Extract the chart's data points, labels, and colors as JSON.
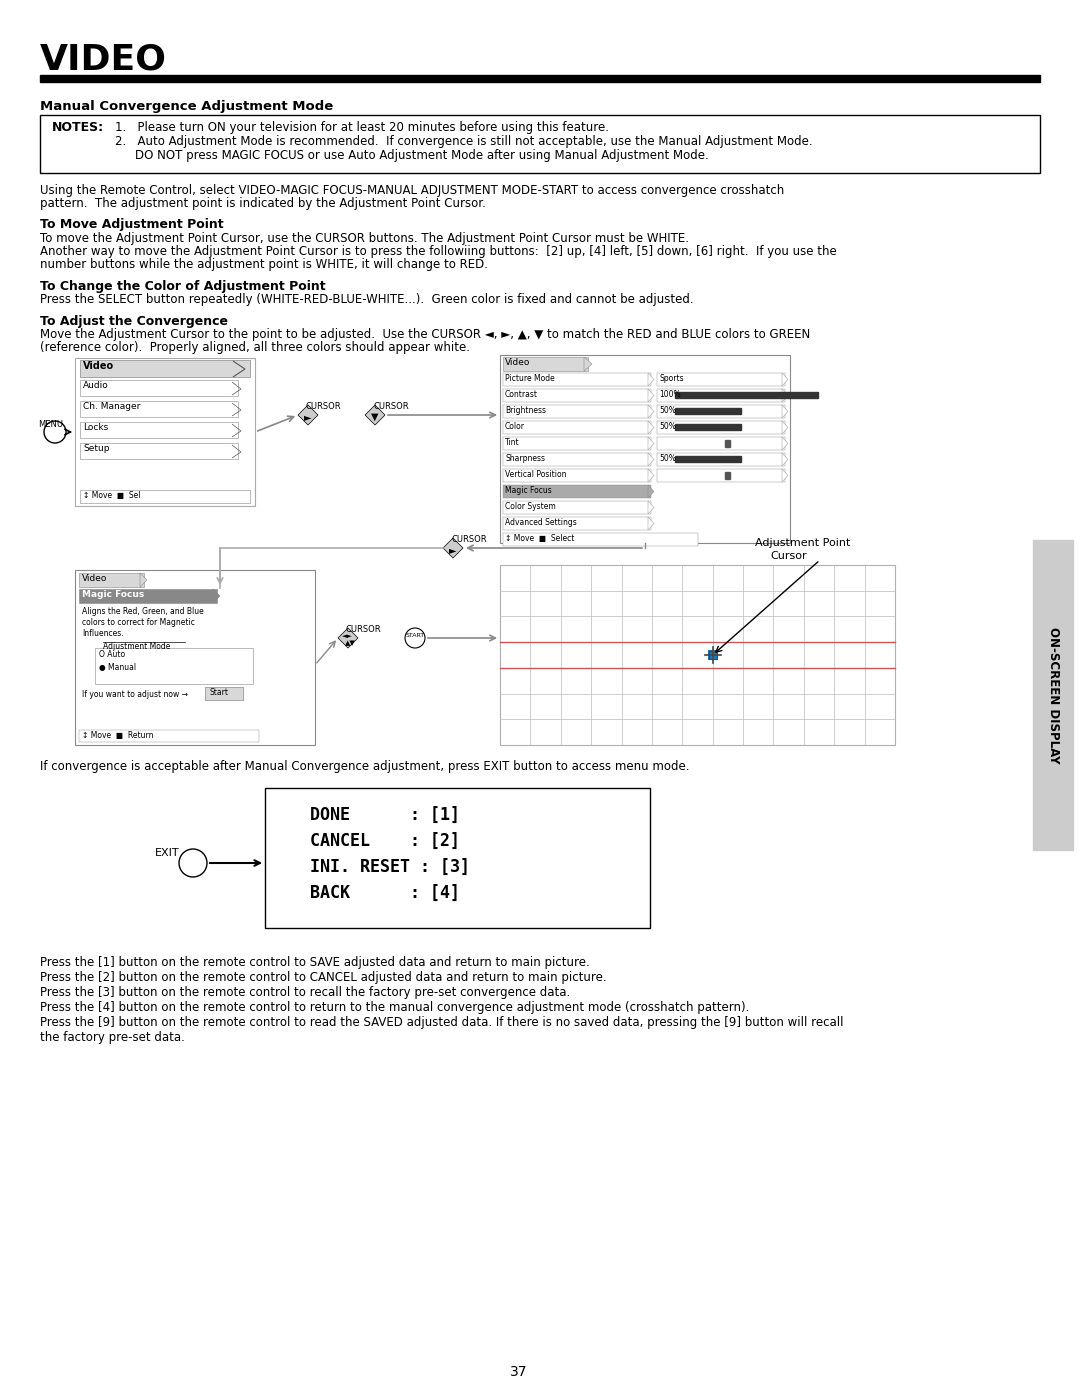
{
  "title": "VIDEO",
  "section_title": "Manual Convergence Adjustment Mode",
  "notes_label": "NOTES:",
  "note1": "Please turn ON your television for at least 20 minutes before using this feature.",
  "note2_a": "Auto Adjustment Mode is recommended.  If convergence is still not acceptable, use the Manual Adjustment Mode.",
  "note2_b": "DO NOT press MAGIC FOCUS or use Auto Adjustment Mode after using Manual Adjustment Mode.",
  "para1_a": "Using the Remote Control, select VIDEO-MAGIC FOCUS-MANUAL ADJUSTMENT MODE-START to access convergence crosshatch",
  "para1_b": "pattern.  The adjustment point is indicated by the Adjustment Point Cursor.",
  "sub1": "To Move Adjustment Point",
  "sub1_text1": "To move the Adjustment Point Cursor, use the CURSOR buttons. The Adjustment Point Cursor must be WHITE.",
  "sub1_text2a": "Another way to move the Adjustment Point Cursor is to press the followiing buttons:  [2] up, [4] left, [5] down, [6] right.  If you use the",
  "sub1_text2b": "number buttons while the adjustment point is WHITE, it will change to RED.",
  "sub2": "To Change the Color of Adjustment Point",
  "sub2_text": "Press the SELECT button repeatedly (WHITE-RED-BLUE-WHITE...).  Green color is fixed and cannot be adjusted.",
  "sub3": "To Adjust the Convergence",
  "sub3_text1": "Move the Adjustment Cursor to the point to be adjusted.  Use the CURSOR ◄, ►, ▲, ▼ to match the RED and BLUE colors to GREEN",
  "sub3_text2": "(reference color).  Properly aligned, all three colors should appear white.",
  "after_diag": "If convergence is acceptable after Manual Convergence adjustment, press EXIT button to access menu mode.",
  "footer_notes": [
    "Press the [1] button on the remote control to SAVE adjusted data and return to main picture.",
    "Press the [2] button on the remote control to CANCEL adjusted data and return to main picture.",
    "Press the [3] button on the remote control to recall the factory pre-set convergence data.",
    "Press the [4] button on the remote control to return to the manual convergence adjustment mode (crosshatch pattern).",
    "Press the [9] button on the remote control to read the SAVED adjusted data. If there is no saved data, pressing the [9] button will recall",
    "the factory pre-set data."
  ],
  "page_num": "37",
  "side_label": "ON-SCREEN DISPLAY",
  "bg_color": "#ffffff"
}
